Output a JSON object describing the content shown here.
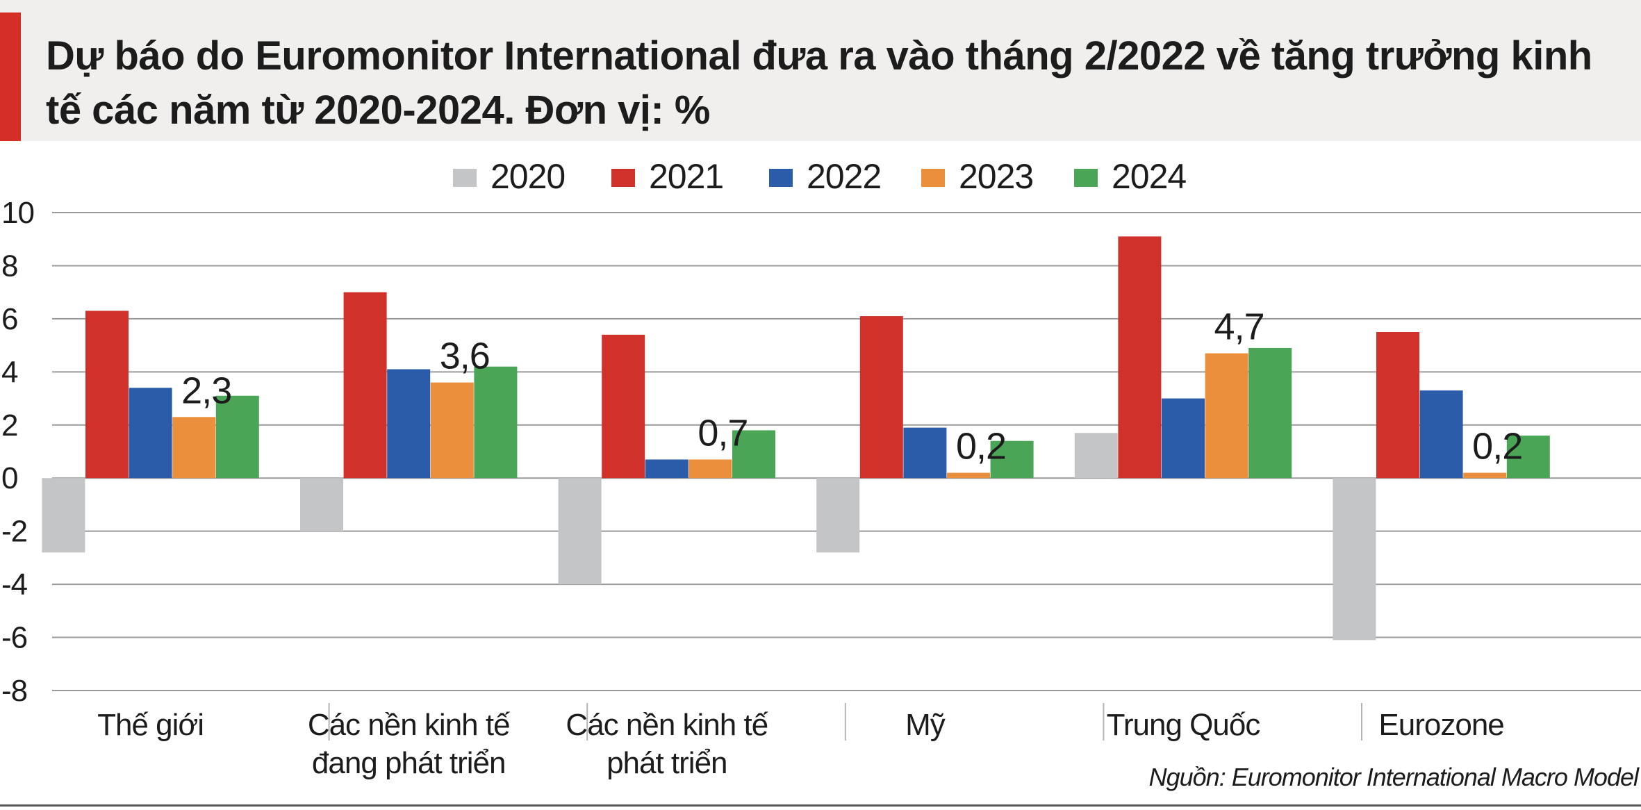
{
  "title": "Dự báo do Euromonitor International đưa ra vào tháng 2/2022 về tăng trưởng kinh tế các năm từ 2020-2024. Đơn vị: %",
  "source": "Nguồn: Euromonitor International Macro Model",
  "colors": {
    "accent": "#d42e27",
    "header_bg": "#f0efed",
    "2020": "#c4c5c7",
    "2021": "#d1312b",
    "2022": "#2a5caa",
    "2023": "#eb8f3d",
    "2024": "#4aa557",
    "grid": "#9a9a9a",
    "text": "#1c1c1c"
  },
  "chart_data": {
    "type": "bar",
    "title": "Dự báo do Euromonitor International đưa ra vào tháng 2/2022 về tăng trưởng kinh tế các năm từ 2020-2024. Đơn vị: %",
    "xlabel": "",
    "ylabel": "%",
    "ylim": [
      -8,
      10
    ],
    "yticks": [
      "10",
      "8",
      "6",
      "4",
      "2",
      "0",
      "-2",
      "-4",
      "-6",
      "-8"
    ],
    "ytick_values": [
      10,
      8,
      6,
      4,
      2,
      0,
      -2,
      -4,
      -6,
      -8
    ],
    "grid": true,
    "legend_position": "top-center",
    "categories": [
      [
        "Thế giới"
      ],
      [
        "Các nền kinh tế",
        "đang phát triển"
      ],
      [
        "Các nền kinh tế",
        "phát triển"
      ],
      [
        "Mỹ"
      ],
      [
        "Trung Quốc"
      ],
      [
        "Eurozone"
      ]
    ],
    "series": [
      {
        "name": "2020",
        "color": "#c4c5c7",
        "values": [
          -2.8,
          -2.0,
          -4.0,
          -2.8,
          1.7,
          -6.1
        ]
      },
      {
        "name": "2021",
        "color": "#d1312b",
        "values": [
          6.3,
          7.0,
          5.4,
          6.1,
          9.1,
          5.5
        ]
      },
      {
        "name": "2022",
        "color": "#2a5caa",
        "values": [
          3.4,
          4.1,
          0.7,
          1.9,
          3.0,
          3.3
        ]
      },
      {
        "name": "2023",
        "color": "#eb8f3d",
        "values": [
          2.3,
          3.6,
          0.7,
          0.2,
          4.7,
          0.2
        ]
      },
      {
        "name": "2024",
        "color": "#4aa557",
        "values": [
          3.1,
          4.2,
          1.8,
          1.4,
          4.9,
          1.6
        ]
      }
    ],
    "annotations": [
      {
        "category": 0,
        "series": "2023",
        "text": "2,3"
      },
      {
        "category": 1,
        "series": "2023",
        "text": "3,6"
      },
      {
        "category": 2,
        "series": "2023",
        "text": "0,7"
      },
      {
        "category": 3,
        "series": "2023",
        "text": "0,2"
      },
      {
        "category": 4,
        "series": "2023",
        "text": "4,7"
      },
      {
        "category": 5,
        "series": "2023",
        "text": "0,2"
      }
    ]
  }
}
